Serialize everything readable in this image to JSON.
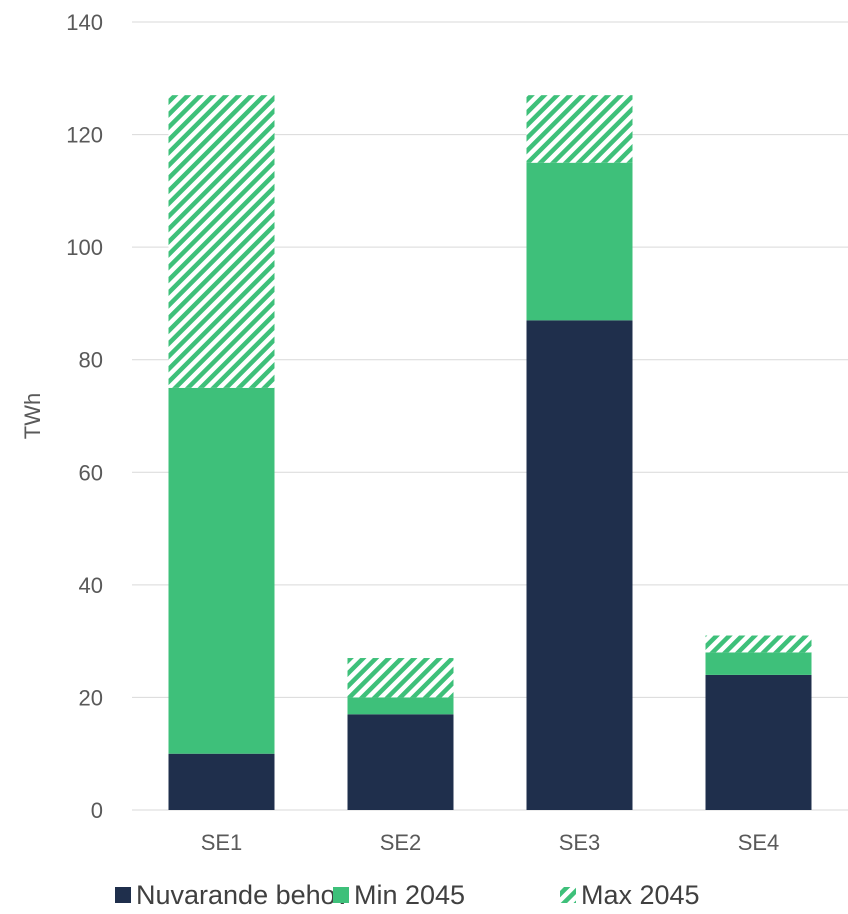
{
  "chart_data": {
    "type": "bar",
    "stacked": true,
    "categories": [
      "SE1",
      "SE2",
      "SE3",
      "SE4"
    ],
    "series": [
      {
        "name": "Nuvarande behov",
        "values": [
          10,
          17,
          87,
          24
        ],
        "color": "#1f2f4c",
        "pattern": "solid"
      },
      {
        "name": "Min 2045",
        "values": [
          65,
          3,
          28,
          4
        ],
        "color": "#3ec07a",
        "pattern": "solid"
      },
      {
        "name": "Max 2045",
        "values": [
          52,
          7,
          12,
          3
        ],
        "color": "#3ec07a",
        "pattern": "diagonal-stripes"
      }
    ],
    "ylabel": "TWh",
    "ylim": [
      0,
      140
    ],
    "yticks": [
      "0",
      "20",
      "40",
      "60",
      "80",
      "100",
      "120",
      "140"
    ],
    "grid": true,
    "legend_position": "bottom"
  }
}
